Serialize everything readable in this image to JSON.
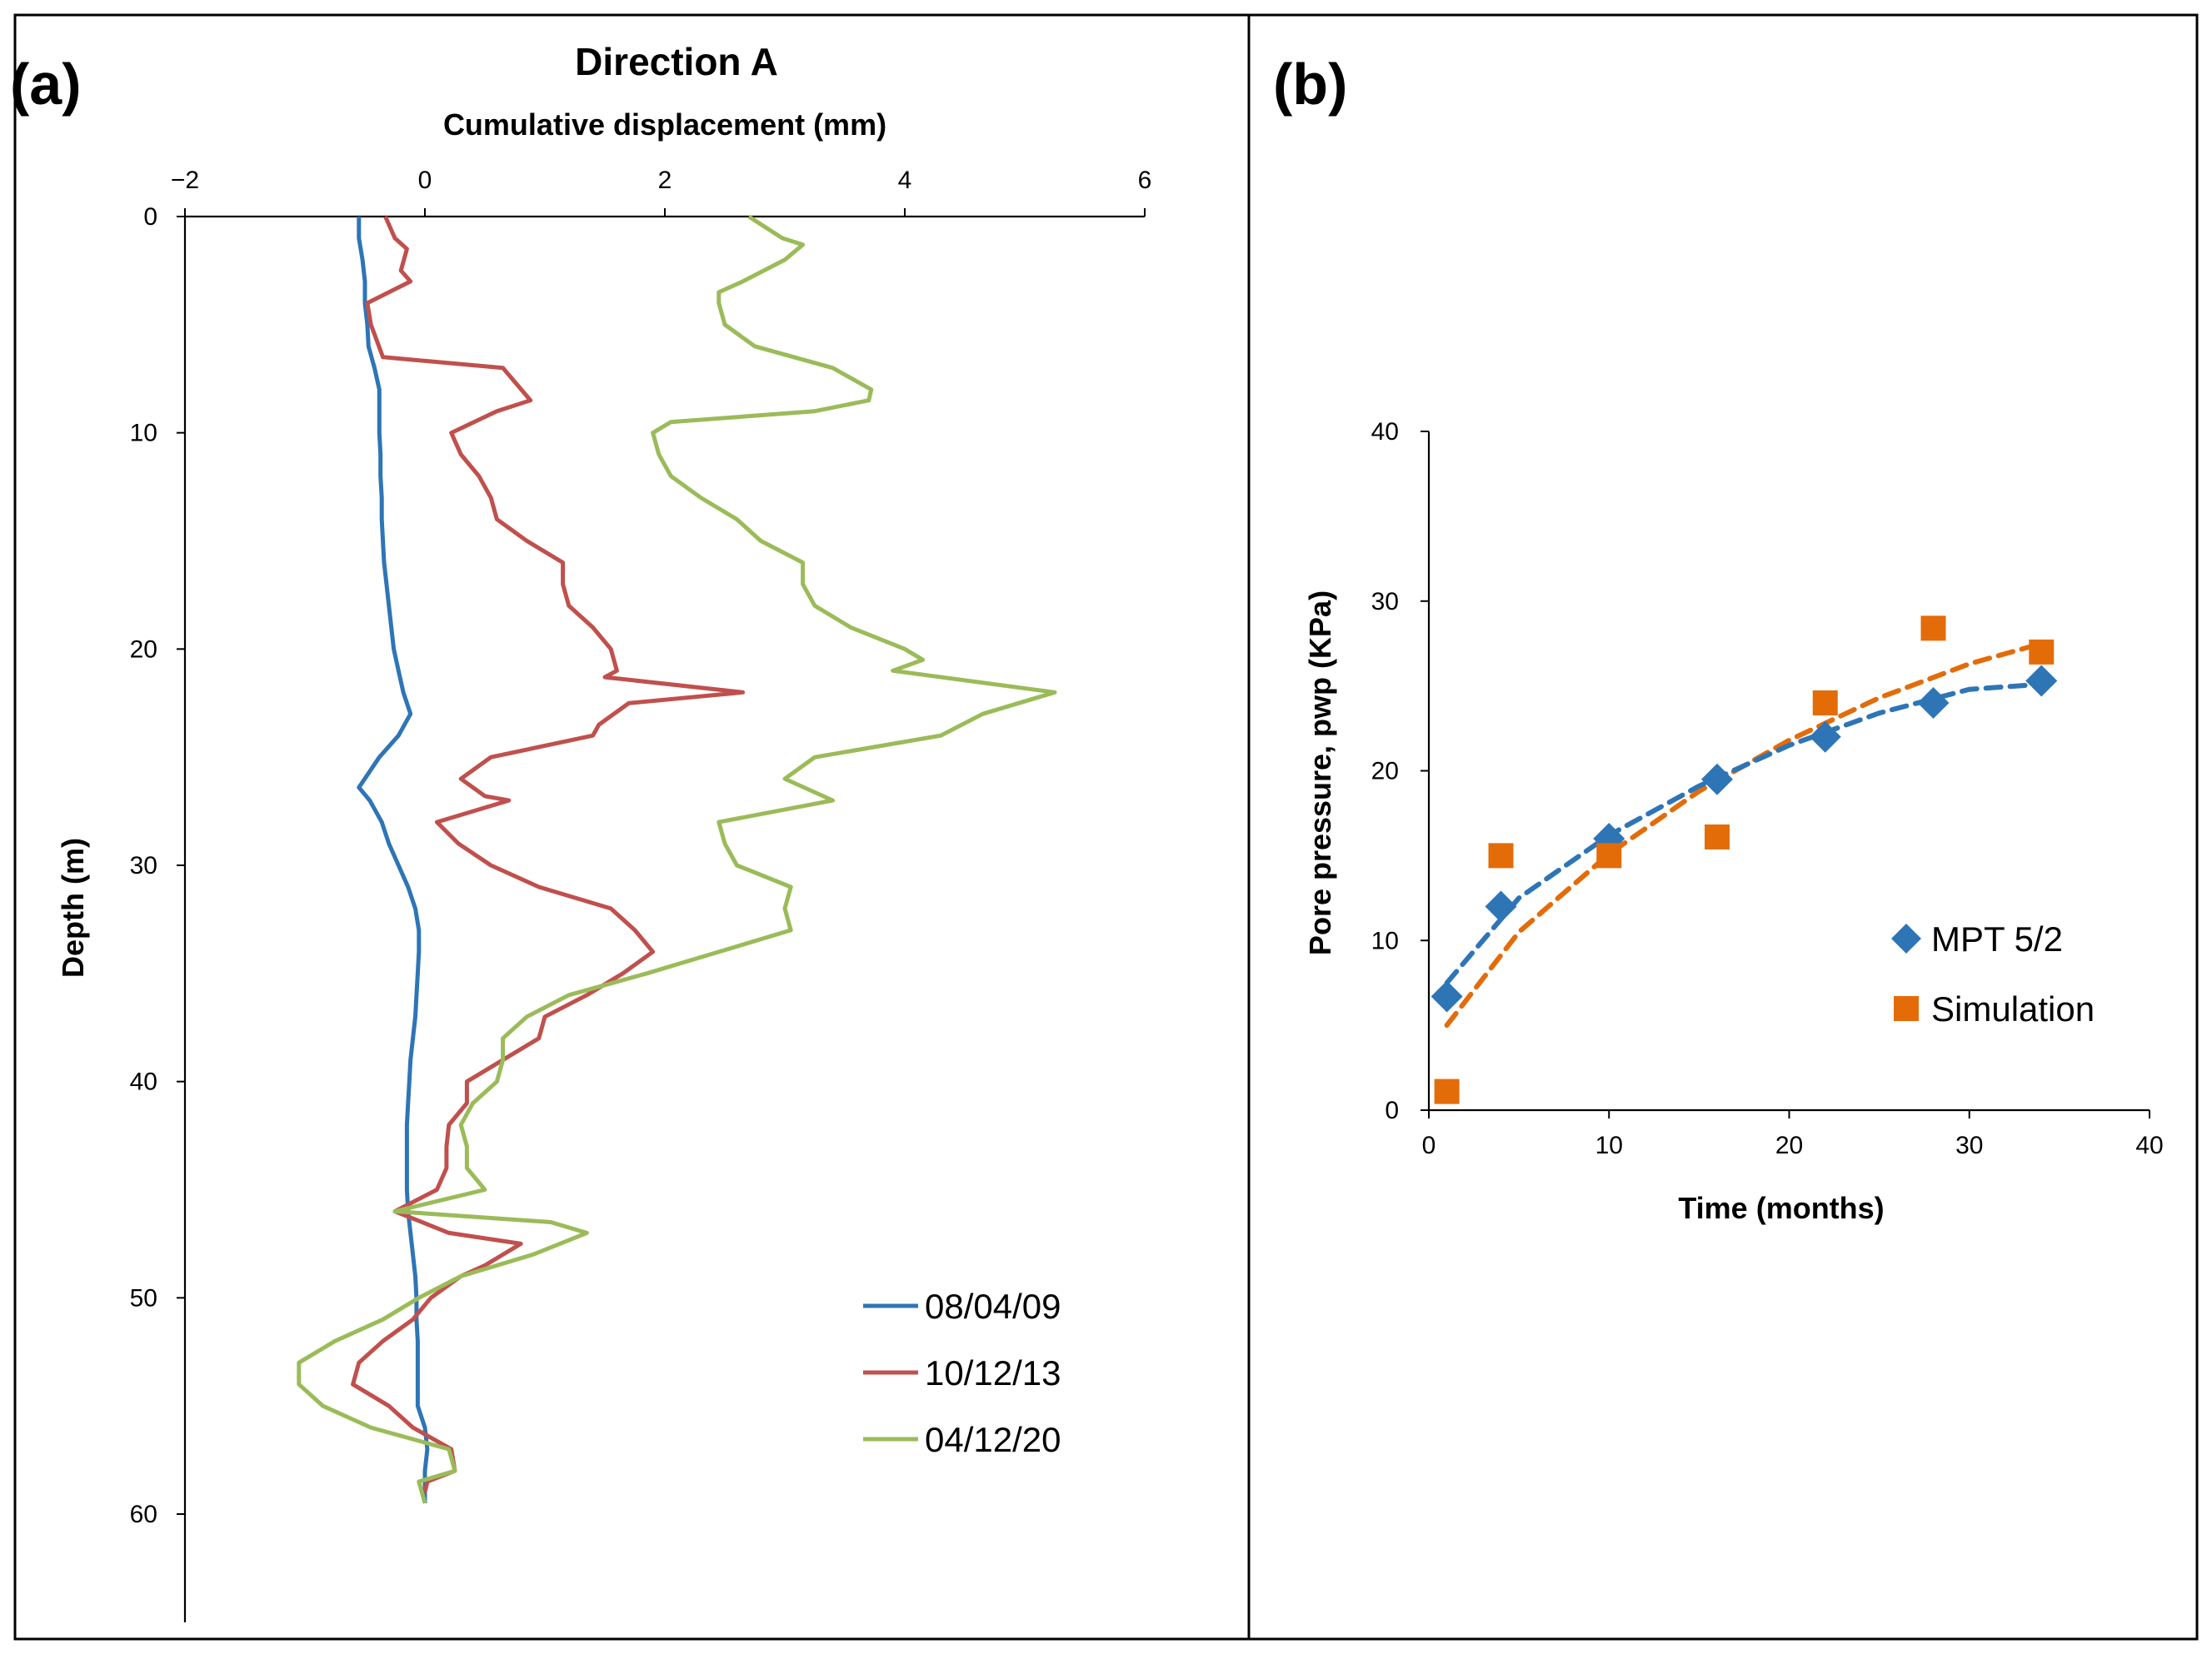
{
  "chart_data": [
    {
      "panel_label": "(a)",
      "type": "line",
      "title": "Direction A",
      "xlabel": "Cumulative displacement (mm)",
      "ylabel": "Depth (m)",
      "xlim": [
        -2,
        6
      ],
      "ylim": [
        0,
        65
      ],
      "y_inverted": true,
      "x_axis_position": "top",
      "xticks": [
        -2,
        0,
        2,
        4,
        6
      ],
      "xtick_labels": [
        "−2",
        "0",
        "2",
        "4",
        "6"
      ],
      "yticks": [
        0,
        10,
        20,
        30,
        40,
        50,
        60
      ],
      "ytick_labels": [
        "0",
        "10",
        "20",
        "30",
        "40",
        "50",
        "60"
      ],
      "legend_position": "bottom-right",
      "series": [
        {
          "name": "08/04/09",
          "color": "#2E75B6",
          "points": [
            [
              -0.55,
              0
            ],
            [
              -0.55,
              1
            ],
            [
              -0.52,
              2
            ],
            [
              -0.5,
              3
            ],
            [
              -0.5,
              4
            ],
            [
              -0.48,
              5
            ],
            [
              -0.47,
              6
            ],
            [
              -0.42,
              7
            ],
            [
              -0.38,
              8
            ],
            [
              -0.38,
              9
            ],
            [
              -0.38,
              10
            ],
            [
              -0.37,
              11
            ],
            [
              -0.37,
              12
            ],
            [
              -0.36,
              13
            ],
            [
              -0.36,
              14
            ],
            [
              -0.35,
              15
            ],
            [
              -0.34,
              16
            ],
            [
              -0.32,
              17
            ],
            [
              -0.3,
              18
            ],
            [
              -0.28,
              19
            ],
            [
              -0.26,
              20
            ],
            [
              -0.22,
              21
            ],
            [
              -0.18,
              22
            ],
            [
              -0.12,
              23
            ],
            [
              -0.22,
              24
            ],
            [
              -0.38,
              25
            ],
            [
              -0.55,
              26.4
            ],
            [
              -0.46,
              27
            ],
            [
              -0.36,
              28
            ],
            [
              -0.3,
              29
            ],
            [
              -0.22,
              30
            ],
            [
              -0.14,
              31
            ],
            [
              -0.08,
              32
            ],
            [
              -0.05,
              33
            ],
            [
              -0.05,
              34
            ],
            [
              -0.06,
              35
            ],
            [
              -0.07,
              36
            ],
            [
              -0.08,
              37
            ],
            [
              -0.1,
              38
            ],
            [
              -0.12,
              39
            ],
            [
              -0.13,
              40
            ],
            [
              -0.14,
              41
            ],
            [
              -0.15,
              42
            ],
            [
              -0.15,
              43
            ],
            [
              -0.15,
              44
            ],
            [
              -0.15,
              45
            ],
            [
              -0.14,
              46
            ],
            [
              -0.12,
              47
            ],
            [
              -0.1,
              48
            ],
            [
              -0.08,
              49
            ],
            [
              -0.07,
              50
            ],
            [
              -0.07,
              51
            ],
            [
              -0.06,
              52
            ],
            [
              -0.06,
              53
            ],
            [
              -0.06,
              54
            ],
            [
              -0.06,
              55
            ],
            [
              0.0,
              56
            ],
            [
              0.02,
              57
            ],
            [
              0.0,
              58
            ],
            [
              0.0,
              59.5
            ]
          ]
        },
        {
          "name": "10/12/13",
          "color": "#C0504D",
          "points": [
            [
              -0.33,
              0
            ],
            [
              -0.25,
              1
            ],
            [
              -0.15,
              1.5
            ],
            [
              -0.2,
              2.5
            ],
            [
              -0.12,
              3
            ],
            [
              -0.48,
              4
            ],
            [
              -0.45,
              5
            ],
            [
              -0.35,
              6.5
            ],
            [
              0.65,
              7
            ],
            [
              0.88,
              8.5
            ],
            [
              0.6,
              9
            ],
            [
              0.22,
              10
            ],
            [
              0.3,
              11
            ],
            [
              0.45,
              12
            ],
            [
              0.55,
              13
            ],
            [
              0.6,
              14
            ],
            [
              0.85,
              15
            ],
            [
              1.15,
              16
            ],
            [
              1.15,
              17
            ],
            [
              1.2,
              18
            ],
            [
              1.4,
              19
            ],
            [
              1.55,
              20
            ],
            [
              1.6,
              21
            ],
            [
              1.5,
              21.3
            ],
            [
              2.65,
              22
            ],
            [
              1.7,
              22.5
            ],
            [
              1.45,
              23.5
            ],
            [
              1.4,
              24
            ],
            [
              0.55,
              25
            ],
            [
              0.3,
              26
            ],
            [
              0.5,
              26.8
            ],
            [
              0.7,
              27
            ],
            [
              0.1,
              28
            ],
            [
              0.28,
              29
            ],
            [
              0.55,
              30
            ],
            [
              0.95,
              31
            ],
            [
              1.55,
              32
            ],
            [
              1.75,
              33
            ],
            [
              1.9,
              34
            ],
            [
              1.65,
              35
            ],
            [
              1.35,
              36
            ],
            [
              1.0,
              37
            ],
            [
              0.95,
              38
            ],
            [
              0.65,
              39
            ],
            [
              0.35,
              40
            ],
            [
              0.35,
              41
            ],
            [
              0.2,
              42
            ],
            [
              0.18,
              43
            ],
            [
              0.18,
              44
            ],
            [
              0.1,
              45
            ],
            [
              -0.25,
              46
            ],
            [
              0.2,
              47
            ],
            [
              0.8,
              47.5
            ],
            [
              0.5,
              48.5
            ],
            [
              0.3,
              49
            ],
            [
              0.05,
              50
            ],
            [
              -0.1,
              51
            ],
            [
              -0.35,
              52
            ],
            [
              -0.55,
              53
            ],
            [
              -0.6,
              54
            ],
            [
              -0.3,
              55
            ],
            [
              -0.1,
              56
            ],
            [
              0.22,
              57
            ],
            [
              0.25,
              58
            ],
            [
              0.02,
              58.5
            ],
            [
              0.0,
              59
            ]
          ]
        },
        {
          "name": "04/12/20",
          "color": "#9BBB59",
          "points": [
            [
              2.7,
              0
            ],
            [
              2.98,
              1
            ],
            [
              3.15,
              1.3
            ],
            [
              3.0,
              2
            ],
            [
              2.65,
              3
            ],
            [
              2.45,
              3.5
            ],
            [
              2.45,
              4
            ],
            [
              2.5,
              5
            ],
            [
              2.75,
              6
            ],
            [
              3.4,
              7
            ],
            [
              3.72,
              8
            ],
            [
              3.7,
              8.5
            ],
            [
              3.25,
              9
            ],
            [
              2.05,
              9.5
            ],
            [
              1.9,
              10
            ],
            [
              1.95,
              11
            ],
            [
              2.05,
              12
            ],
            [
              2.3,
              13
            ],
            [
              2.6,
              14
            ],
            [
              2.8,
              15
            ],
            [
              3.15,
              16
            ],
            [
              3.15,
              17
            ],
            [
              3.25,
              18
            ],
            [
              3.55,
              19
            ],
            [
              4.0,
              20
            ],
            [
              4.15,
              20.5
            ],
            [
              3.9,
              21
            ],
            [
              5.25,
              22
            ],
            [
              4.65,
              23
            ],
            [
              4.3,
              24
            ],
            [
              3.25,
              25
            ],
            [
              3.0,
              26
            ],
            [
              3.4,
              27
            ],
            [
              2.45,
              28
            ],
            [
              2.5,
              29
            ],
            [
              2.6,
              30
            ],
            [
              3.05,
              31
            ],
            [
              3.0,
              32
            ],
            [
              3.05,
              33
            ],
            [
              2.45,
              34
            ],
            [
              1.85,
              35
            ],
            [
              1.2,
              36
            ],
            [
              0.85,
              37
            ],
            [
              0.65,
              38
            ],
            [
              0.65,
              39
            ],
            [
              0.6,
              40
            ],
            [
              0.4,
              41
            ],
            [
              0.3,
              42
            ],
            [
              0.35,
              43
            ],
            [
              0.35,
              44
            ],
            [
              0.5,
              45
            ],
            [
              -0.25,
              46
            ],
            [
              1.05,
              46.5
            ],
            [
              1.35,
              47
            ],
            [
              0.9,
              48
            ],
            [
              0.3,
              49
            ],
            [
              -0.05,
              50
            ],
            [
              -0.35,
              51
            ],
            [
              -0.75,
              52
            ],
            [
              -1.05,
              53
            ],
            [
              -1.05,
              54
            ],
            [
              -0.85,
              55
            ],
            [
              -0.45,
              56
            ],
            [
              0.2,
              57
            ],
            [
              0.25,
              58
            ],
            [
              -0.05,
              58.5
            ],
            [
              0.0,
              59.5
            ]
          ]
        }
      ]
    },
    {
      "panel_label": "(b)",
      "type": "scatter",
      "title": "",
      "xlabel": "Time (months)",
      "ylabel": "Pore pressure, pwp (KPa)",
      "xlim": [
        0,
        40
      ],
      "ylim": [
        0,
        40
      ],
      "xticks": [
        0,
        10,
        20,
        30,
        40
      ],
      "xtick_labels": [
        "0",
        "10",
        "20",
        "30",
        "40"
      ],
      "yticks": [
        0,
        10,
        20,
        30,
        40
      ],
      "ytick_labels": [
        "0",
        "10",
        "20",
        "30",
        "40"
      ],
      "legend_position": "bottom-right",
      "series": [
        {
          "name": "MPT 5/2",
          "marker": "diamond",
          "color": "#2E75B6",
          "x": [
            1,
            4,
            10,
            16,
            22,
            28,
            34
          ],
          "y": [
            6.7,
            12,
            16,
            19.5,
            22,
            24,
            25.3
          ],
          "trend_x": [
            1,
            5,
            10,
            15,
            20,
            25,
            30,
            34
          ],
          "trend_y": [
            7.5,
            12.5,
            16.2,
            19.1,
            21.5,
            23.4,
            24.8,
            25.1
          ]
        },
        {
          "name": "Simulation",
          "marker": "square",
          "color": "#E36C09",
          "x": [
            1,
            4,
            10,
            16,
            22,
            28,
            34
          ],
          "y": [
            1.1,
            15,
            15,
            16.1,
            24,
            28.4,
            27
          ],
          "trend_x": [
            1,
            5,
            10,
            15,
            20,
            25,
            30,
            34
          ],
          "trend_y": [
            5,
            10.5,
            15.1,
            18.8,
            21.8,
            24.3,
            26.3,
            27.5
          ]
        }
      ]
    }
  ]
}
